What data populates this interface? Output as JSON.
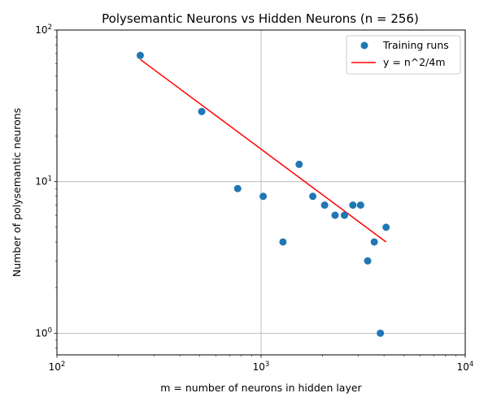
{
  "chart_data": {
    "type": "scatter",
    "title": "Polysemantic Neurons vs Hidden Neurons (n = 256)",
    "xlabel": "m = number of neurons in hidden layer",
    "ylabel": "Number of polysemantic neurons",
    "xscale": "log",
    "yscale": "log",
    "xlim": [
      100,
      10000
    ],
    "ylim": [
      0.72,
      100
    ],
    "x_ticks": [
      {
        "value": 100,
        "base": "10",
        "exp": "2"
      },
      {
        "value": 1000,
        "base": "10",
        "exp": "3"
      },
      {
        "value": 10000,
        "base": "10",
        "exp": "4"
      }
    ],
    "y_ticks": [
      {
        "value": 1,
        "base": "10",
        "exp": "0"
      },
      {
        "value": 10,
        "base": "10",
        "exp": "1"
      },
      {
        "value": 100,
        "base": "10",
        "exp": "2"
      }
    ],
    "grid": true,
    "legend_position": "top-right",
    "series": [
      {
        "name": "Training runs",
        "kind": "scatter",
        "color": "#1f77b4",
        "points": [
          [
            256,
            68
          ],
          [
            512,
            29
          ],
          [
            768,
            9
          ],
          [
            1024,
            8
          ],
          [
            1280,
            4
          ],
          [
            1536,
            13
          ],
          [
            1792,
            8
          ],
          [
            2048,
            7
          ],
          [
            2304,
            6
          ],
          [
            2560,
            6
          ],
          [
            2816,
            7
          ],
          [
            3072,
            7
          ],
          [
            3328,
            3
          ],
          [
            3584,
            4
          ],
          [
            3840,
            1
          ],
          [
            4096,
            5
          ]
        ]
      },
      {
        "name": "y = n^2/4m",
        "kind": "line",
        "color": "#ff0000",
        "n": 256,
        "x_range": [
          256,
          4096
        ]
      }
    ]
  }
}
